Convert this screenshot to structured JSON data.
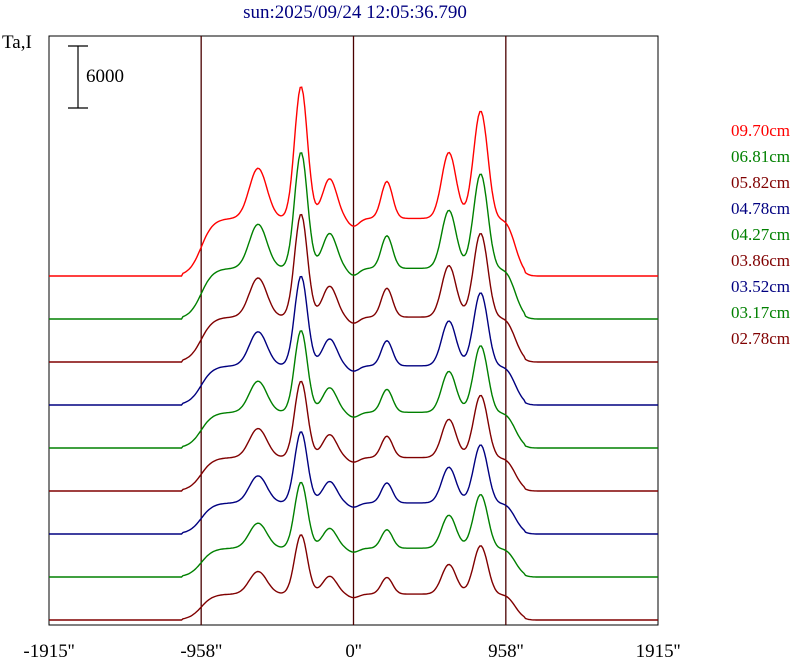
{
  "chart_data": {
    "type": "line",
    "title": "sun:2025/09/24 12:05:36.790",
    "ylabel": "Ta,I",
    "scale_bar_label": "6000",
    "xticks": [
      "-1915''",
      "-958''",
      "0''",
      "958''",
      "1915''"
    ],
    "xlim": [
      -1915,
      1915
    ],
    "vlines": [
      -958,
      0,
      958
    ],
    "colors": {
      "red": "#ff0000",
      "green": "#008000",
      "maroon": "#800000",
      "navy": "#000080",
      "frame": "#000000"
    },
    "series": [
      {
        "name": "09.70cm",
        "color": "#ff0000",
        "baseline": 0,
        "amp": 1.0
      },
      {
        "name": "06.81cm",
        "color": "#008000",
        "baseline": 0,
        "amp": 0.88
      },
      {
        "name": "05.82cm",
        "color": "#800000",
        "baseline": 0,
        "amp": 0.78
      },
      {
        "name": "04.78cm",
        "color": "#000080",
        "baseline": 0,
        "amp": 0.68
      },
      {
        "name": "04.27cm",
        "color": "#008000",
        "baseline": 0,
        "amp": 0.62
      },
      {
        "name": "03.86cm",
        "color": "#800000",
        "baseline": 0,
        "amp": 0.58
      },
      {
        "name": "03.52cm",
        "color": "#000080",
        "baseline": 0,
        "amp": 0.54
      },
      {
        "name": "03.17cm",
        "color": "#008000",
        "baseline": 0,
        "amp": 0.5
      },
      {
        "name": "02.78cm",
        "color": "#800000",
        "baseline": 0,
        "amp": 0.45
      }
    ]
  }
}
